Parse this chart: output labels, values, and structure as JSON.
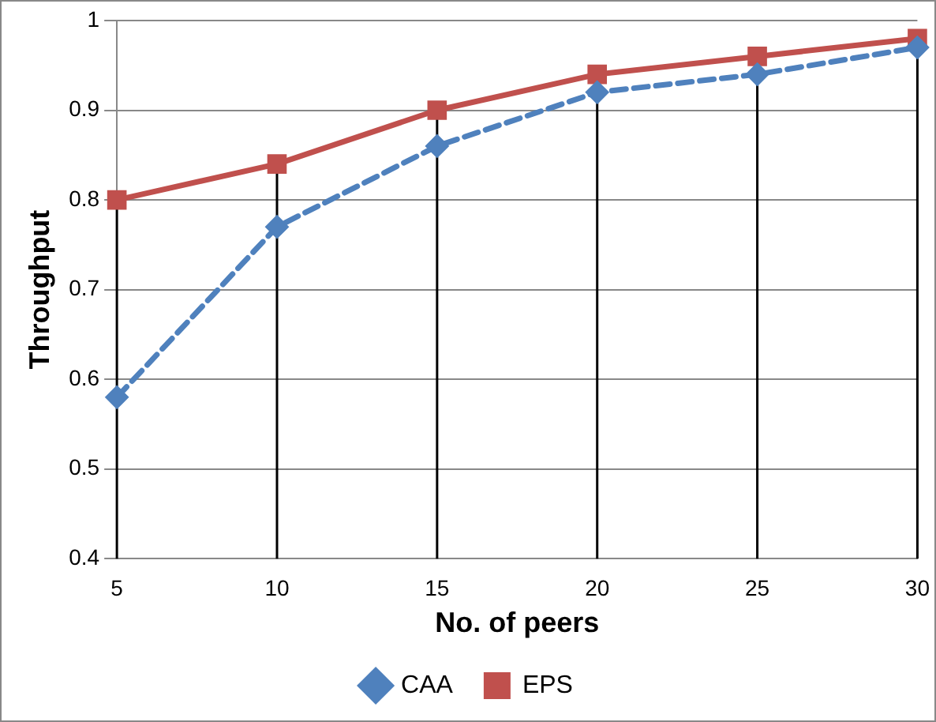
{
  "chart_data": {
    "type": "line",
    "xlabel": "No. of peers",
    "ylabel": "Throughput",
    "categories": [
      "5",
      "10",
      "15",
      "20",
      "25",
      "30"
    ],
    "series": [
      {
        "name": "CAA",
        "color": "#4f81bd",
        "marker": "diamond",
        "line_style": "dashed",
        "values": [
          0.58,
          0.77,
          0.86,
          0.92,
          0.94,
          0.97
        ]
      },
      {
        "name": "EPS",
        "color": "#c0504d",
        "marker": "square",
        "line_style": "solid",
        "values": [
          0.8,
          0.84,
          0.9,
          0.94,
          0.96,
          0.98
        ]
      }
    ],
    "ylim": [
      0.4,
      1
    ],
    "yticks": [
      0.4,
      0.5,
      0.6,
      0.7,
      0.8,
      0.9,
      1
    ],
    "grid": true,
    "legend": "bottom"
  }
}
